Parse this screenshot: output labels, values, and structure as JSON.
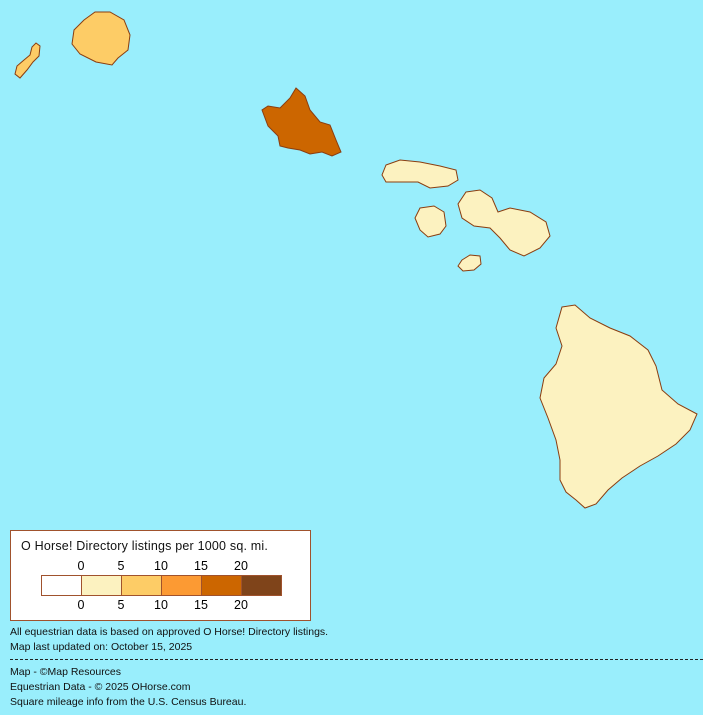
{
  "map": {
    "background_color": "#99eefc",
    "islands": [
      {
        "name": "Niihau",
        "color": "#fdcc66"
      },
      {
        "name": "Kauai",
        "color": "#fdcc66"
      },
      {
        "name": "Oahu",
        "color": "#cc6600"
      },
      {
        "name": "Molokai",
        "color": "#fcf2c0"
      },
      {
        "name": "Lanai",
        "color": "#fcf2c0"
      },
      {
        "name": "Maui",
        "color": "#fcf2c0"
      },
      {
        "name": "Kahoolawe",
        "color": "#fcf2c0"
      },
      {
        "name": "Hawaii",
        "color": "#fcf2c0"
      }
    ]
  },
  "legend": {
    "title": "O Horse! Directory listings per 1000 sq. mi.",
    "ticks": [
      "0",
      "5",
      "10",
      "15",
      "20"
    ],
    "colors": [
      "#ffffff",
      "#fcf2c0",
      "#fdcc66",
      "#fc9a33",
      "#cc6600",
      "#7f441a"
    ]
  },
  "notes": {
    "data_basis": "All equestrian data is based on approved O Horse! Directory listings.",
    "updated": "Map last updated on: October 15, 2025",
    "map_credit": "Map - ©Map Resources",
    "data_credit": "Equestrian Data - © 2025 OHorse.com",
    "census_credit": "Square mileage info from the U.S. Census Bureau."
  }
}
